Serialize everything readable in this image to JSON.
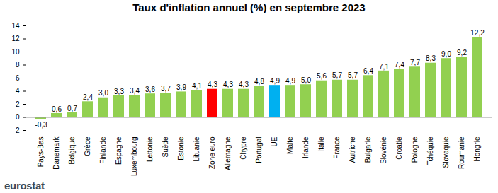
{
  "chart_data": {
    "type": "bar",
    "title": "Taux d'inflation annuel (%) en septembre 2023",
    "source": "eurostat",
    "categories": [
      "Pays-Bas",
      "Danemark",
      "Belgique",
      "Grèce",
      "Finlande",
      "Espagne",
      "Luxembourg",
      "Lettonie",
      "Suède",
      "Estonie",
      "Lituanie",
      "Zone euro",
      "Allemagne",
      "Chypre",
      "Portugal",
      "UE",
      "Malte",
      "Irlande",
      "Italie",
      "France",
      "Autriche",
      "Bulgarie",
      "Slovénie",
      "Croatie",
      "Pologne",
      "Tchéquie",
      "Slovaquie",
      "Roumanie",
      "Hongrie"
    ],
    "values": [
      -0.3,
      0.6,
      0.7,
      2.4,
      3.0,
      3.3,
      3.4,
      3.6,
      3.7,
      3.9,
      4.1,
      4.3,
      4.3,
      4.3,
      4.8,
      4.9,
      4.9,
      5.0,
      5.6,
      5.7,
      5.7,
      6.4,
      7.1,
      7.4,
      7.7,
      8.3,
      9.0,
      9.2,
      12.2
    ],
    "value_labels": [
      "-0,3",
      "0,6",
      "0,7",
      "2,4",
      "3,0",
      "3,3",
      "3,4",
      "3,6",
      "3,7",
      "3,9",
      "4,1",
      "4,3",
      "4,3",
      "4,3",
      "4,8",
      "4,9",
      "4,9",
      "5,0",
      "5,6",
      "5,7",
      "5,7",
      "6,4",
      "7,1",
      "7,4",
      "7,7",
      "8,3",
      "9,0",
      "9,2",
      "12,2"
    ],
    "colors": [
      "#92d050",
      "#92d050",
      "#92d050",
      "#92d050",
      "#92d050",
      "#92d050",
      "#92d050",
      "#92d050",
      "#92d050",
      "#92d050",
      "#92d050",
      "#ff0000",
      "#92d050",
      "#92d050",
      "#92d050",
      "#00b0f0",
      "#92d050",
      "#92d050",
      "#92d050",
      "#92d050",
      "#92d050",
      "#92d050",
      "#92d050",
      "#92d050",
      "#92d050",
      "#92d050",
      "#92d050",
      "#92d050",
      "#92d050"
    ],
    "ylim": [
      -2,
      14
    ],
    "yticks": [
      -2,
      0,
      2,
      4,
      6,
      8,
      10,
      12,
      14
    ],
    "grid": false,
    "data_labels": true
  }
}
